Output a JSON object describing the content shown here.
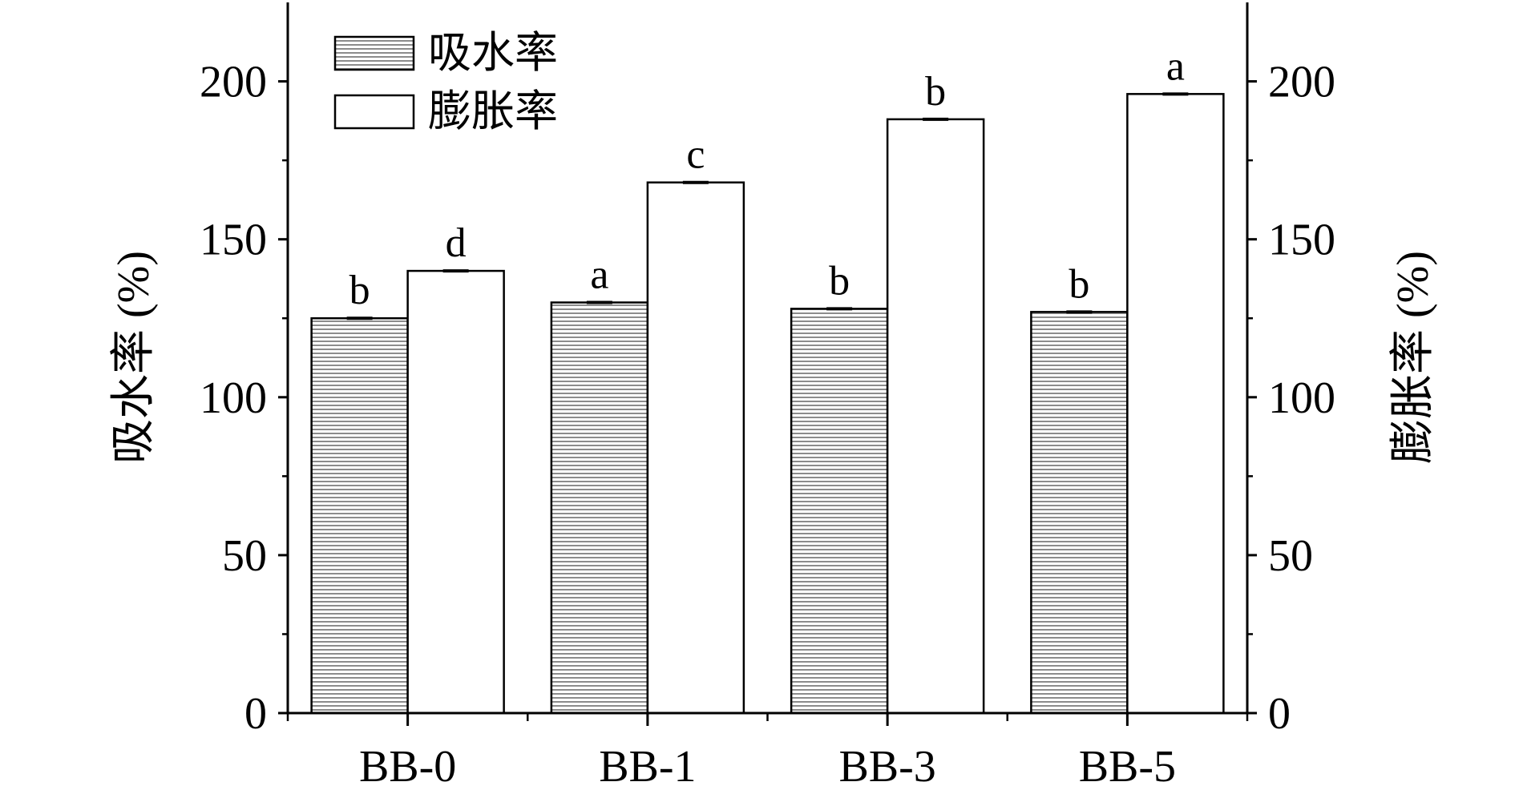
{
  "chart_data": {
    "type": "bar",
    "categories": [
      "BB-0",
      "BB-1",
      "BB-3",
      "BB-5"
    ],
    "series": [
      {
        "name": "吸水率",
        "values": [
          125,
          130,
          128,
          127
        ],
        "letters": [
          "b",
          "a",
          "b",
          "b"
        ],
        "pattern": "horizontal-lines"
      },
      {
        "name": "膨胀率",
        "values": [
          140,
          168,
          188,
          196
        ],
        "letters": [
          "d",
          "c",
          "b",
          "a"
        ],
        "pattern": "empty"
      }
    ],
    "ylabel_left": "吸水率 (%)",
    "ylabel_right": "膨胀率 (%)",
    "ylim": [
      0,
      225
    ],
    "yticks": [
      0,
      50,
      100,
      150,
      200
    ],
    "ytick_labels": [
      "0",
      "50",
      "100",
      "150",
      "200"
    ],
    "legend_position": "top-left",
    "grid": false,
    "colors": {
      "axis": "#000000",
      "bar_fill": "#ffffff",
      "hatch": "#8c8c8c"
    }
  }
}
